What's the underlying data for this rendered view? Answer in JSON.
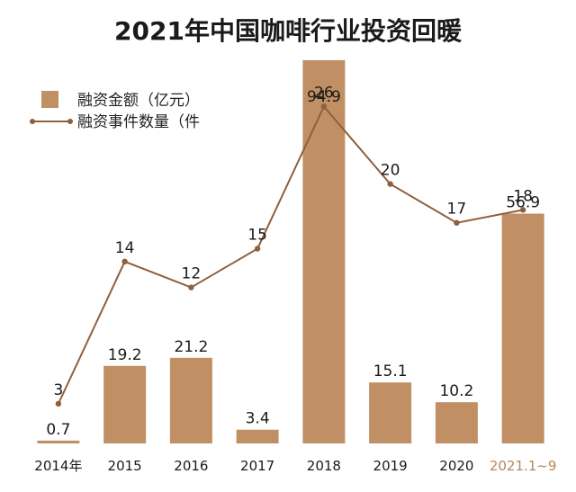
{
  "chart_data": {
    "type": "bar",
    "title": "2021年中国咖啡行业投资回暖",
    "categories": [
      "2014年",
      "2015",
      "2016",
      "2017",
      "2018",
      "2019",
      "2020",
      "2021.1~9"
    ],
    "highlight_category_index": 7,
    "series": [
      {
        "name": "融资金额（亿元）",
        "type": "bar",
        "values": [
          0.7,
          19.2,
          21.2,
          3.4,
          94.9,
          15.1,
          10.2,
          56.9
        ],
        "value_labels": [
          "0.7",
          "19.2",
          "21.2",
          "3.4",
          "94.9",
          "15.1",
          "10.2",
          "56.9"
        ]
      },
      {
        "name": "融资事件数量（件",
        "type": "line",
        "values": [
          3,
          14,
          12,
          15,
          26,
          20,
          17,
          18
        ],
        "value_labels": [
          "3",
          "14",
          "12",
          "15",
          "26",
          "20",
          "17",
          "18"
        ]
      }
    ],
    "bar_axis_range": [
      0,
      100
    ],
    "line_axis_range": [
      0,
      27
    ],
    "grid": false,
    "legend_position": "top-left",
    "colors": {
      "bar": "#c09064",
      "line": "#8f5f3e",
      "highlight_text": "#b8875c",
      "text": "#1a1a1a"
    }
  }
}
